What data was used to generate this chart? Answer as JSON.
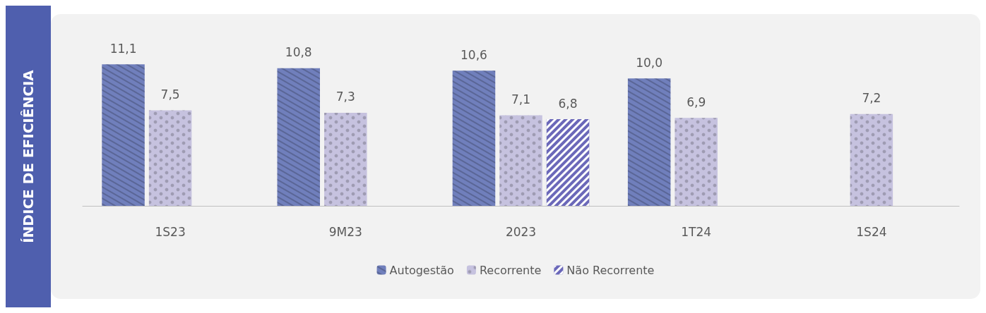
{
  "chart_data": {
    "type": "bar",
    "ylabel": "ÍNDICE DE EFICIÊNCIA",
    "categories": [
      "1S23",
      "9M23",
      "2023",
      "1T24",
      "1S24"
    ],
    "series": [
      {
        "name": "Autogestão",
        "color": "#707fbc",
        "values": [
          11.1,
          10.8,
          10.6,
          10.0,
          null
        ],
        "value_labels": [
          "11,1",
          "10,8",
          "10,6",
          "10,0",
          null
        ]
      },
      {
        "name": "Recorrente",
        "color": "#c6c2df",
        "values": [
          7.5,
          7.3,
          7.1,
          6.9,
          7.2
        ],
        "value_labels": [
          "7,5",
          "7,3",
          "7,1",
          "6,9",
          "7,2"
        ]
      },
      {
        "name": "Não Recorrente",
        "color": "#6b68b9",
        "values": [
          null,
          null,
          6.8,
          null,
          null
        ],
        "value_labels": [
          null,
          null,
          "6,8",
          null,
          null
        ]
      }
    ],
    "tick_labels": "x",
    "legend": "bottom",
    "grid": false
  }
}
